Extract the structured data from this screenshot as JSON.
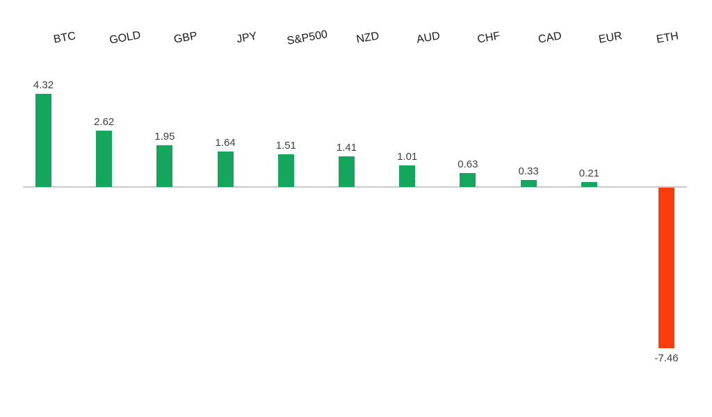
{
  "chart_data": {
    "type": "bar",
    "title": "",
    "xlabel": "",
    "ylabel": "",
    "categories": [
      "BTC",
      "GOLD",
      "GBP",
      "JPY",
      "S&P500",
      "NZD",
      "AUD",
      "CHF",
      "CAD",
      "EUR",
      "ETH"
    ],
    "values": [
      4.32,
      2.62,
      1.95,
      1.64,
      1.51,
      1.41,
      1.01,
      0.63,
      0.33,
      0.21,
      -7.46
    ],
    "value_labels": [
      "4.32",
      "2.62",
      "1.95",
      "1.64",
      "1.51",
      "1.41",
      "1.01",
      "0.63",
      "0.33",
      "0.21",
      "-7.46"
    ],
    "ylim": [
      -8,
      5
    ],
    "grid": false,
    "legend": false,
    "category_label_rotation_deg": -10
  },
  "colors": {
    "positive_bar": "#14A65C",
    "negative_bar": "#FB3D0E",
    "axis_line": "#C9C9C9",
    "value_label": "#3F3F3F",
    "category_label": "#1A1A1A",
    "background": "#FFFFFF"
  }
}
